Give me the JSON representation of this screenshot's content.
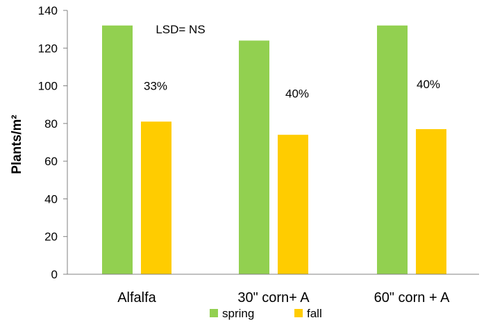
{
  "chart_data": {
    "type": "bar",
    "title": "",
    "xlabel": "",
    "ylabel": "Plants/m²",
    "ylim": [
      0,
      140
    ],
    "yticks": [
      0,
      20,
      40,
      60,
      80,
      100,
      120,
      140
    ],
    "categories": [
      "Alfalfa",
      "30\" corn+ A",
      "60\" corn + A"
    ],
    "series": [
      {
        "name": "spring",
        "color": "#92D050",
        "values": [
          132,
          124,
          132
        ]
      },
      {
        "name": "fall",
        "color": "#FFCC00",
        "values": [
          81,
          74,
          77
        ]
      }
    ],
    "annotations": [
      {
        "text": "LSD= NS",
        "category": 0,
        "y": 130
      },
      {
        "text": "33%",
        "category": 0,
        "y": 100
      },
      {
        "text": "40%",
        "category": 1,
        "y": 96
      },
      {
        "text": "40%",
        "category": 2,
        "y": 101
      }
    ],
    "grid": false,
    "legend": "bottom"
  }
}
